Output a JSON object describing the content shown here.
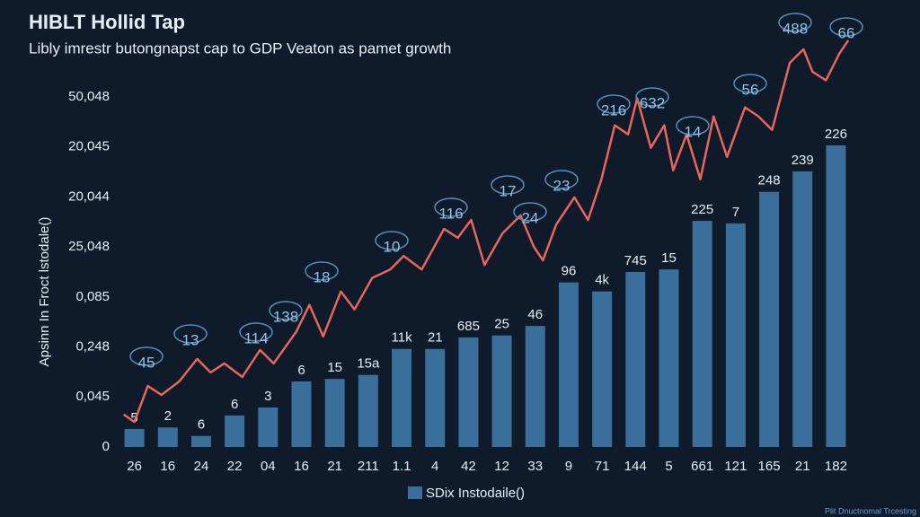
{
  "chart_data": {
    "type": "bar_line",
    "title": "HIBLT Hollid Tap",
    "subtitle": "Libly imrestr butongnapst cap to GDP Veaton as pamet growth",
    "y_label": "Apsinn In Froct lstodale()",
    "legend_label": "SDix Instodaile()",
    "footnote": "Plit Dnuctnomal Trcesting",
    "categories": [
      "26",
      "16",
      "24",
      "22",
      "04",
      "16",
      "21",
      "211",
      "1.1",
      "4",
      "42",
      "12",
      "33",
      "9",
      "71",
      "144",
      "5",
      "661",
      "121",
      "165",
      "21",
      "182"
    ],
    "values": [
      0.36,
      0.39,
      0.22,
      0.63,
      0.79,
      1.31,
      1.36,
      1.44,
      1.96,
      1.96,
      2.19,
      2.23,
      2.42,
      3.29,
      3.11,
      3.5,
      3.55,
      4.52,
      4.47,
      5.1,
      5.51,
      6.03
    ],
    "color": "#3a6f9c",
    "bar_labels": [
      "5",
      "2",
      "6",
      "6",
      "3",
      "6",
      "15",
      "15a",
      "11k",
      "21",
      "685",
      "25",
      "46",
      "96",
      "4k",
      "745",
      "15",
      "225",
      "7",
      "248",
      "239",
      "226"
    ],
    "line": {
      "color": "#e8665a",
      "x": [
        -0.32,
        0,
        0.4,
        0.81,
        1.34,
        1.88,
        2.28,
        2.69,
        3.23,
        3.76,
        4.17,
        4.84,
        5.24,
        5.65,
        6.18,
        6.59,
        7.12,
        7.66,
        8.06,
        8.6,
        9.27,
        9.68,
        10.08,
        10.48,
        11.02,
        11.56,
        11.96,
        12.23,
        12.63,
        13.17,
        13.58,
        13.98,
        14.38,
        14.78,
        15.05,
        15.46,
        15.86,
        16.13,
        16.53,
        16.94,
        17.34,
        17.74,
        18.28,
        18.68,
        19.09,
        19.62,
        20.03,
        20.3,
        20.7,
        21.1,
        21.37
      ],
      "values": [
        0.65,
        0.5,
        1.22,
        1.04,
        1.31,
        1.76,
        1.49,
        1.67,
        1.4,
        1.94,
        1.67,
        2.3,
        2.84,
        2.21,
        3.11,
        2.75,
        3.38,
        3.55,
        3.82,
        3.55,
        4.36,
        4.18,
        4.54,
        3.64,
        4.27,
        4.63,
        4.0,
        3.73,
        4.45,
        4.99,
        4.54,
        5.35,
        6.43,
        6.25,
        6.97,
        5.98,
        6.43,
        5.53,
        6.25,
        5.35,
        6.61,
        5.8,
        6.79,
        6.61,
        6.34,
        7.68,
        7.95,
        7.5,
        7.33,
        7.86,
        8.13
      ]
    },
    "line_labels": [
      "45",
      "13",
      "114",
      "138",
      "18",
      "10",
      "116",
      "17",
      "24",
      "23",
      "216",
      "632",
      "14",
      "56",
      "488",
      "66"
    ],
    "xlim": [
      -0.5,
      21.5
    ],
    "ylim": [
      0,
      8.2
    ],
    "yticks": [
      {
        "value": 0,
        "label": "0"
      },
      {
        "value": 1,
        "label": "0,045"
      },
      {
        "value": 2,
        "label": "0,248"
      },
      {
        "value": 3,
        "label": "0,085"
      },
      {
        "value": 4,
        "label": "25,048"
      },
      {
        "value": 5,
        "label": "20,044"
      },
      {
        "value": 6,
        "label": "20,045"
      },
      {
        "value": 7,
        "label": "50,048"
      }
    ]
  }
}
